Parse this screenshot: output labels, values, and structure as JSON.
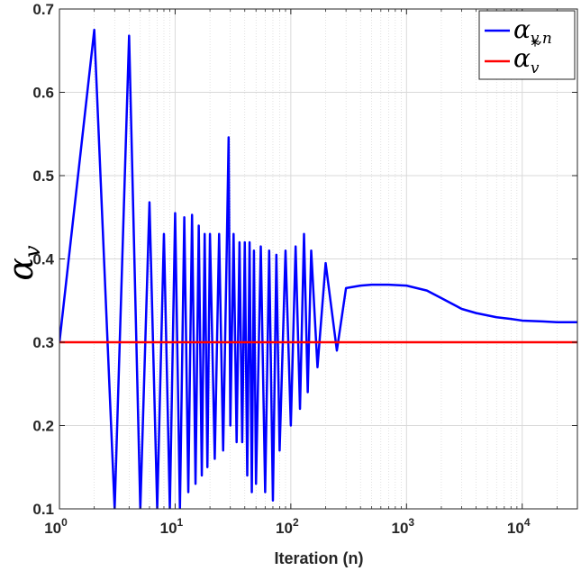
{
  "chart_data": {
    "type": "line",
    "xscale": "log",
    "xlim": [
      1,
      30000
    ],
    "ylim": [
      0.1,
      0.7
    ],
    "grid": true,
    "legend_placement": "top-right",
    "xlabel": "Iteration (n)",
    "ylabel": {
      "symbol": "α",
      "subscript": "v"
    },
    "x_ticks": [
      {
        "value": 1,
        "base": "10",
        "exp": "0"
      },
      {
        "value": 10,
        "base": "10",
        "exp": "1"
      },
      {
        "value": 100,
        "base": "10",
        "exp": "2"
      },
      {
        "value": 1000,
        "base": "10",
        "exp": "3"
      },
      {
        "value": 10000,
        "base": "10",
        "exp": "4"
      }
    ],
    "y_ticks": [
      {
        "value": 0.1,
        "label": "0.1"
      },
      {
        "value": 0.2,
        "label": "0.2"
      },
      {
        "value": 0.3,
        "label": "0.3"
      },
      {
        "value": 0.4,
        "label": "0.4"
      },
      {
        "value": 0.5,
        "label": "0.5"
      },
      {
        "value": 0.6,
        "label": "0.6"
      },
      {
        "value": 0.7,
        "label": "0.7"
      }
    ],
    "series": [
      {
        "legend": {
          "symbol": "α",
          "subscript": "v,n",
          "superscript": ""
        },
        "color": "#0000ff",
        "x": [
          1,
          2,
          3,
          4,
          5,
          6,
          7,
          8,
          9,
          10,
          11,
          12,
          13,
          14,
          15,
          16,
          17,
          18,
          19,
          20,
          22,
          24,
          26,
          28,
          29,
          30,
          32,
          34,
          36,
          38,
          40,
          42,
          44,
          46,
          48,
          50,
          55,
          60,
          65,
          70,
          75,
          80,
          90,
          100,
          110,
          120,
          130,
          140,
          150,
          170,
          200,
          250,
          300,
          400,
          500,
          700,
          1000,
          1500,
          2000,
          3000,
          4000,
          6000,
          8000,
          10000,
          15000,
          20000,
          30000
        ],
        "y": [
          0.3,
          0.675,
          0.1,
          0.668,
          0.1,
          0.468,
          0.1,
          0.43,
          0.1,
          0.455,
          0.1,
          0.45,
          0.12,
          0.453,
          0.13,
          0.44,
          0.14,
          0.43,
          0.15,
          0.43,
          0.16,
          0.43,
          0.17,
          0.42,
          0.546,
          0.2,
          0.43,
          0.18,
          0.42,
          0.18,
          0.42,
          0.14,
          0.42,
          0.12,
          0.41,
          0.13,
          0.415,
          0.12,
          0.41,
          0.11,
          0.405,
          0.17,
          0.41,
          0.2,
          0.415,
          0.22,
          0.43,
          0.24,
          0.41,
          0.27,
          0.395,
          0.29,
          0.365,
          0.368,
          0.369,
          0.369,
          0.368,
          0.362,
          0.353,
          0.34,
          0.335,
          0.33,
          0.328,
          0.326,
          0.325,
          0.324,
          0.324
        ]
      },
      {
        "legend": {
          "symbol": "α",
          "subscript": "v",
          "superscript": "*"
        },
        "color": "#ff0000",
        "x": [
          1,
          30000
        ],
        "y": [
          0.3,
          0.3
        ]
      }
    ]
  }
}
